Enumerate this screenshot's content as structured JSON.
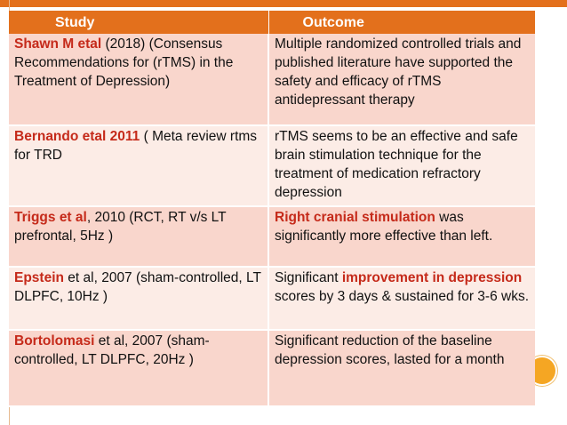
{
  "colors": {
    "accent": "#e3701c",
    "highlight_text": "#c52a1a",
    "row_dark": "#f9d6cc",
    "row_light": "#fcece6"
  },
  "table": {
    "headers": [
      "Study",
      "Outcome"
    ],
    "rows": [
      {
        "study_hl": "Shawn M etal",
        "study_rest": " (2018) (Consensus Recommendations for (rTMS) in the Treatment of Depression)",
        "outcome_pre": "Multiple randomized controlled trials and published literature have supported the safety and efficacy of rTMS antidepressant therapy",
        "outcome_hl": "",
        "outcome_post": ""
      },
      {
        "study_hl": "Bernando etal 2011",
        "study_rest": " ( Meta review rtms for TRD",
        "outcome_pre": "rTMS seems to be an effective and safe brain stimulation technique for the treatment of medication refractory depression",
        "outcome_hl": "",
        "outcome_post": ""
      },
      {
        "study_hl": "Triggs et al",
        "study_rest": ", 2010 (RCT, RT v/s LT prefrontal, 5Hz )",
        "outcome_pre": "",
        "outcome_hl": "Right cranial stimulation",
        "outcome_post": " was significantly more effective than left."
      },
      {
        "study_hl": "Epstein",
        "study_rest": " et al, 2007 (sham-controlled, LT DLPFC, 10Hz )",
        "outcome_pre": "Significant ",
        "outcome_hl": "improvement in depression",
        "outcome_post": " scores by 3 days & sustained for 3-6 wks."
      },
      {
        "study_hl": "Bortolomasi",
        "study_rest": " et al, 2007 (sham-controlled, LT DLPFC, 20Hz )",
        "outcome_pre": "Significant reduction of the baseline depression scores, lasted for a month",
        "outcome_hl": "",
        "outcome_post": ""
      }
    ]
  }
}
